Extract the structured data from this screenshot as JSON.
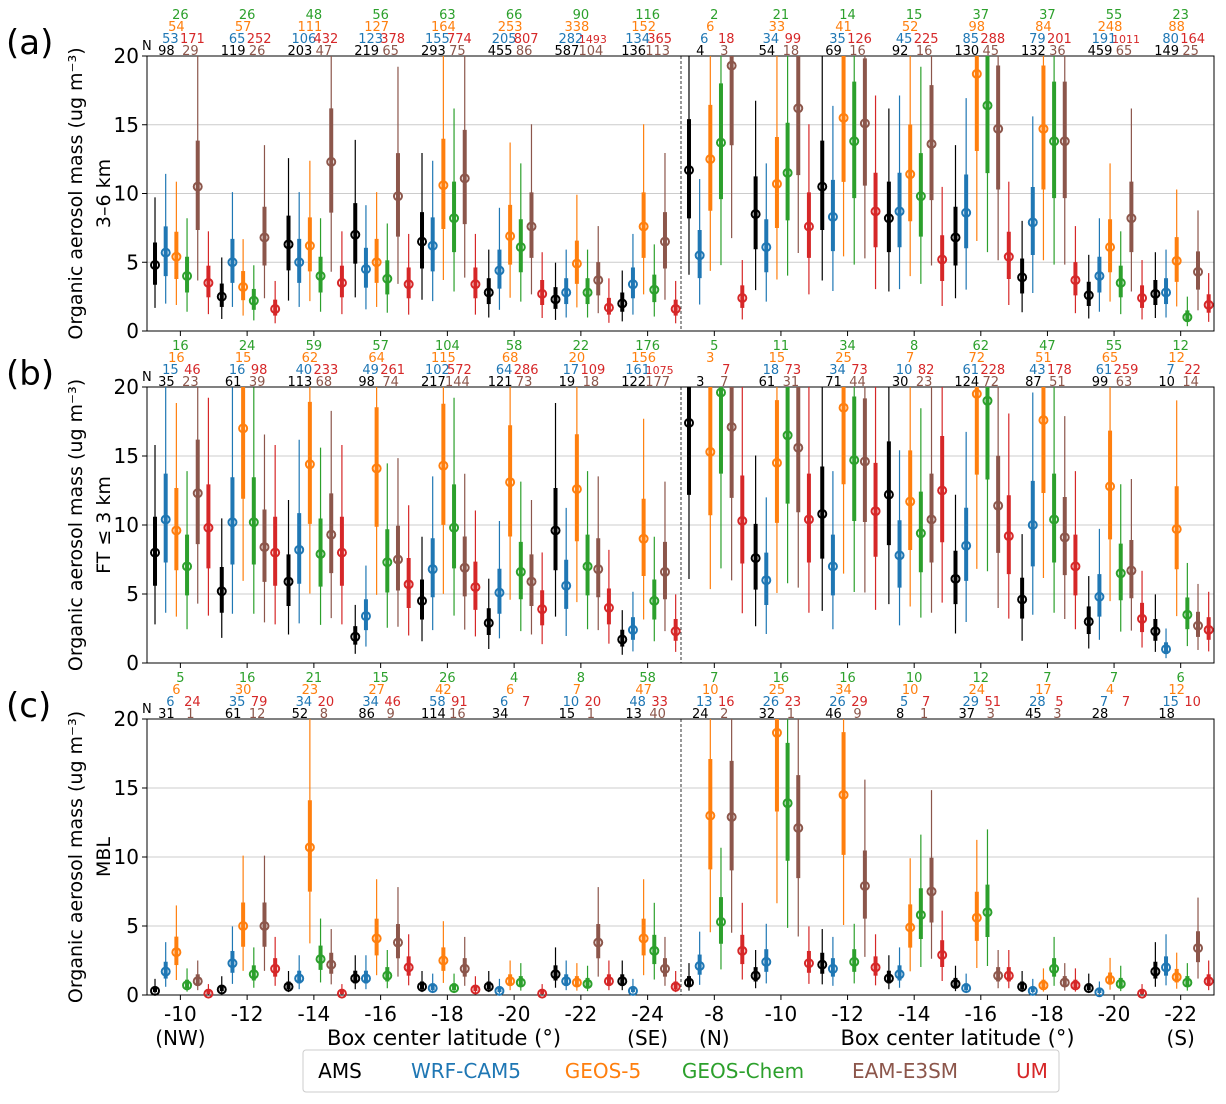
{
  "colors": {
    "AMS": "#000000",
    "WRF-CAM5": "#1f77b4",
    "GEOS-5": "#ff7f0e",
    "GEOS-Chem": "#2ca02c",
    "EAM-E3SM": "#8c564b",
    "UM": "#d62728",
    "grid": "#cccccc"
  },
  "chart_data": {
    "type": "box",
    "ylim": [
      0,
      20
    ],
    "yticks": [
      0,
      5,
      10,
      15,
      20
    ],
    "xlabel": "Box center latitude (°)",
    "n_label": "N",
    "legend": [
      "AMS",
      "WRF-CAM5",
      "GEOS-5",
      "GEOS-Chem",
      "EAM-E3SM",
      "UM"
    ],
    "groups": [
      {
        "categories": [
          "-10",
          "-12",
          "-14",
          "-16",
          "-18",
          "-20",
          "-22",
          "-24"
        ],
        "end_labels": [
          "(NW)",
          "(SE)"
        ]
      },
      {
        "categories": [
          "-8",
          "-10",
          "-12",
          "-14",
          "-16",
          "-18",
          "-20",
          "-22"
        ],
        "end_labels": [
          "(N)",
          "(S)"
        ]
      }
    ],
    "panels": [
      {
        "letter": "(a)",
        "ylabel": [
          "Organic aerosol mass (ug m⁻³)",
          "3–6 km"
        ],
        "counts": {
          "AMS": [
            "98",
            "119",
            "203",
            "219",
            "293",
            "455",
            "587",
            "136",
            "4",
            "54",
            "69",
            "92",
            "130",
            "132",
            "459",
            "149"
          ],
          "WRF-CAM5": [
            "53",
            "65",
            "106",
            "123",
            "155",
            "205",
            "282",
            "134",
            "6",
            "34",
            "35",
            "45",
            "85",
            "79",
            "191",
            "80"
          ],
          "GEOS-5": [
            "54",
            "57",
            "111",
            "127",
            "164",
            "253",
            "338",
            "152",
            "6",
            "33",
            "41",
            "52",
            "98",
            "84",
            "248",
            "88"
          ],
          "GEOS-Chem": [
            "26",
            "26",
            "48",
            "56",
            "63",
            "66",
            "90",
            "116",
            "2",
            "21",
            "14",
            "15",
            "37",
            "37",
            "55",
            "23"
          ],
          "EAM-E3SM": [
            "29",
            "26",
            "47",
            "65",
            "75",
            "86",
            "104",
            "113",
            "3",
            "18",
            "16",
            "16",
            "45",
            "36",
            "65",
            "25"
          ],
          "UM": [
            "171",
            "252",
            "432",
            "378",
            "774",
            "807",
            "1493",
            "365",
            "18",
            "99",
            "126",
            "225",
            "288",
            "201",
            "1011",
            "164"
          ]
        },
        "medians": {
          "AMS": [
            4.8,
            2.5,
            6.3,
            7.0,
            6.5,
            2.8,
            2.3,
            2.0,
            11.7,
            8.5,
            10.5,
            8.2,
            6.8,
            3.9,
            2.6,
            2.7
          ],
          "WRF-CAM5": [
            5.7,
            5.0,
            5.0,
            4.5,
            6.2,
            4.4,
            2.8,
            3.4,
            5.5,
            6.1,
            8.3,
            8.7,
            8.6,
            7.9,
            4.0,
            2.8
          ],
          "GEOS-5": [
            5.4,
            3.2,
            6.2,
            5.0,
            10.6,
            6.9,
            4.9,
            7.6,
            12.5,
            10.7,
            15.5,
            11.4,
            18.7,
            14.7,
            6.1,
            5.1
          ],
          "GEOS-Chem": [
            4.0,
            2.2,
            4.0,
            3.8,
            8.2,
            6.1,
            2.8,
            3.0,
            13.7,
            11.5,
            13.8,
            9.8,
            16.4,
            13.8,
            3.5,
            1.0
          ],
          "EAM-E3SM": [
            10.5,
            6.8,
            12.3,
            9.8,
            11.1,
            7.6,
            3.7,
            6.5,
            19.3,
            16.2,
            15.1,
            13.6,
            14.7,
            13.8,
            8.2,
            4.3
          ],
          "UM": [
            3.5,
            1.6,
            3.5,
            3.4,
            3.4,
            2.7,
            1.7,
            1.6,
            2.4,
            7.6,
            8.7,
            5.2,
            5.4,
            3.7,
            2.4,
            1.9
          ]
        }
      },
      {
        "letter": "(b)",
        "ylabel": [
          "Organic aerosol mass (ug m⁻³)",
          "FT ≤ 3 km"
        ],
        "counts": {
          "AMS": [
            "35",
            "61",
            "113",
            "98",
            "217",
            "121",
            "19",
            "122",
            "3",
            "61",
            "71",
            "30",
            "124",
            "87",
            "99",
            "10"
          ],
          "WRF-CAM5": [
            "15",
            "16",
            "40",
            "49",
            "102",
            "64",
            "17",
            "161",
            "",
            "18",
            "34",
            "10",
            "61",
            "43",
            "61",
            "7"
          ],
          "GEOS-5": [
            "16",
            "15",
            "62",
            "64",
            "115",
            "68",
            "20",
            "156",
            "3",
            "15",
            "25",
            "7",
            "72",
            "51",
            "65",
            "12"
          ],
          "GEOS-Chem": [
            "16",
            "24",
            "59",
            "57",
            "104",
            "58",
            "22",
            "176",
            "5",
            "11",
            "34",
            "8",
            "62",
            "47",
            "55",
            "12"
          ],
          "EAM-E3SM": [
            "23",
            "39",
            "68",
            "74",
            "144",
            "73",
            "18",
            "177",
            "7",
            "31",
            "44",
            "23",
            "72",
            "51",
            "63",
            "14"
          ],
          "UM": [
            "46",
            "98",
            "233",
            "261",
            "572",
            "286",
            "109",
            "1075",
            "7",
            "73",
            "73",
            "82",
            "228",
            "178",
            "259",
            "22"
          ]
        },
        "medians": {
          "AMS": [
            8.0,
            5.2,
            5.9,
            1.9,
            4.5,
            2.9,
            9.6,
            1.7,
            17.4,
            7.6,
            10.8,
            12.2,
            6.1,
            4.6,
            3.0,
            2.3
          ],
          "WRF-CAM5": [
            10.4,
            10.2,
            8.2,
            3.4,
            6.8,
            5.1,
            5.6,
            2.4,
            null,
            6.0,
            7.0,
            7.8,
            8.5,
            10.0,
            4.8,
            1.0
          ],
          "GEOS-5": [
            9.6,
            17.0,
            14.4,
            14.1,
            14.3,
            13.1,
            12.6,
            9.0,
            15.3,
            14.5,
            18.5,
            11.7,
            19.5,
            17.6,
            12.8,
            9.7
          ],
          "GEOS-Chem": [
            7.0,
            10.2,
            7.9,
            7.3,
            9.8,
            6.6,
            7.0,
            4.5,
            19.6,
            16.5,
            14.7,
            9.4,
            19.0,
            10.4,
            6.5,
            3.5
          ],
          "EAM-E3SM": [
            12.3,
            8.4,
            9.3,
            7.5,
            6.9,
            5.9,
            6.8,
            6.6,
            17.1,
            15.6,
            14.6,
            10.4,
            11.4,
            9.1,
            6.7,
            2.7
          ],
          "UM": [
            9.8,
            8.0,
            8.0,
            5.7,
            5.5,
            3.9,
            4.0,
            2.3,
            10.3,
            10.4,
            11.0,
            12.5,
            9.2,
            7.0,
            3.2,
            2.4
          ]
        }
      },
      {
        "letter": "(c)",
        "ylabel": [
          "Organic aerosol mass (ug m⁻³)",
          "MBL"
        ],
        "counts": {
          "AMS": [
            "31",
            "61",
            "52",
            "86",
            "114",
            "34",
            "15",
            "13",
            "24",
            "32",
            "46",
            "8",
            "37",
            "45",
            "28",
            "18"
          ],
          "WRF-CAM5": [
            "6",
            "35",
            "34",
            "34",
            "58",
            "6",
            "10",
            "48",
            "13",
            "26",
            "26",
            "5",
            "29",
            "28",
            "7",
            "15"
          ],
          "GEOS-5": [
            "6",
            "30",
            "23",
            "27",
            "42",
            "6",
            "7",
            "47",
            "10",
            "25",
            "34",
            "10",
            "24",
            "17",
            "4",
            "12"
          ],
          "GEOS-Chem": [
            "5",
            "16",
            "21",
            "15",
            "26",
            "4",
            "8",
            "58",
            "7",
            "16",
            "16",
            "10",
            "12",
            "7",
            "7",
            "6"
          ],
          "EAM-E3SM": [
            "1",
            "12",
            "8",
            "9",
            "16",
            "",
            "1",
            "40",
            "2",
            "1",
            "9",
            "1",
            "3",
            "3",
            "",
            ""
          ],
          "UM": [
            "24",
            "79",
            "20",
            "46",
            "91",
            "7",
            "20",
            "33",
            "16",
            "23",
            "29",
            "7",
            "51",
            "5",
            "7",
            "10"
          ]
        },
        "medians": {
          "AMS": [
            0.3,
            0.4,
            0.6,
            1.2,
            0.6,
            0.6,
            1.5,
            1.0,
            0.9,
            1.4,
            2.2,
            1.2,
            0.8,
            0.6,
            0.5,
            1.7
          ],
          "WRF-CAM5": [
            1.7,
            2.3,
            1.2,
            1.2,
            0.5,
            0.3,
            1.0,
            0.3,
            2.1,
            2.4,
            1.9,
            1.5,
            0.5,
            0.3,
            0.2,
            2.0
          ],
          "GEOS-5": [
            3.1,
            5.0,
            10.7,
            4.1,
            2.5,
            1.0,
            0.9,
            4.1,
            13.0,
            19.0,
            14.5,
            4.9,
            5.6,
            0.7,
            1.1,
            1.3
          ],
          "GEOS-Chem": [
            0.7,
            1.5,
            2.6,
            1.4,
            0.5,
            0.9,
            0.8,
            3.2,
            5.3,
            13.9,
            2.4,
            5.8,
            6.0,
            1.9,
            0.8,
            0.9
          ],
          "EAM-E3SM": [
            1.0,
            5.0,
            2.2,
            3.8,
            1.9,
            null,
            3.8,
            1.9,
            12.9,
            12.1,
            7.9,
            7.5,
            1.4,
            0.9,
            null,
            3.4
          ],
          "UM": [
            0.1,
            1.9,
            0.1,
            2.0,
            0.4,
            0.1,
            1.0,
            0.6,
            3.2,
            2.3,
            2.0,
            2.9,
            1.4,
            0.7,
            0.1,
            1.0
          ]
        }
      }
    ]
  }
}
